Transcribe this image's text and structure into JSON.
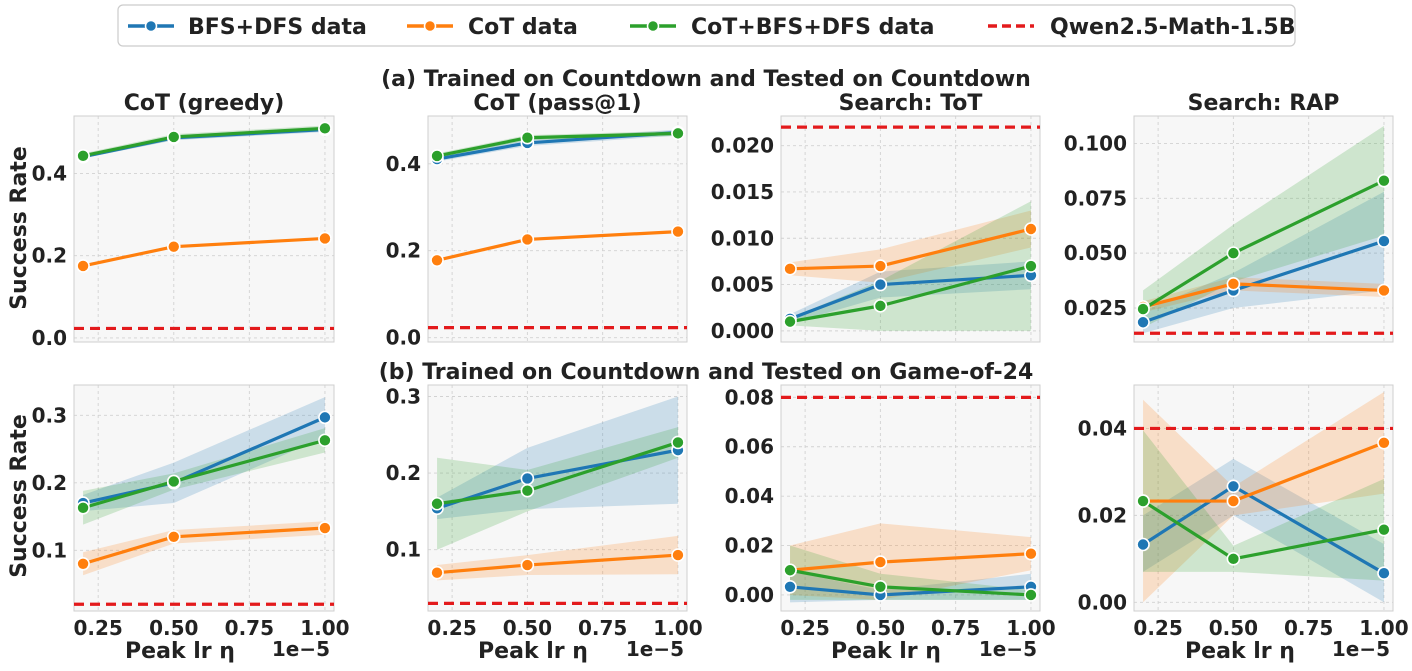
{
  "legend": {
    "items": [
      {
        "label": "BFS+DFS data",
        "color": "#1f77b4",
        "style": "solid-marker"
      },
      {
        "label": "CoT data",
        "color": "#ff7f0e",
        "style": "solid-marker"
      },
      {
        "label": "CoT+BFS+DFS data",
        "color": "#2ca02c",
        "style": "solid-marker"
      },
      {
        "label": "Qwen2.5-Math-1.5B",
        "color": "#e31a1c",
        "style": "dashed"
      }
    ]
  },
  "rows": [
    {
      "title": "(a) Trained on Countdown and Tested on Countdown"
    },
    {
      "title": "(b) Trained on Countdown and Tested on Game-of-24"
    }
  ],
  "axis_labels": {
    "ylabel": "Success Rate",
    "xlabel": "Peak lr η",
    "xscale_note": "1e−5"
  },
  "chart_data": [
    {
      "type": "line",
      "title": "CoT (greedy)",
      "xlabel": "",
      "ylabel": "Success Rate",
      "x": [
        0.2,
        0.5,
        1.0
      ],
      "xlim": [
        0.17,
        1.03
      ],
      "xticks": [
        "0.25",
        "0.50",
        "0.75",
        "1.00"
      ],
      "show_xticks": false,
      "ylim": [
        -0.01,
        0.54
      ],
      "yticks": [
        0.0,
        0.2,
        0.4
      ],
      "ytick_labels": [
        "0.0",
        "0.2",
        "0.4"
      ],
      "baseline": 0.023,
      "series": [
        {
          "name": "BFS+DFS data",
          "values": [
            0.441,
            0.487,
            0.507
          ],
          "lower": [
            0.437,
            0.481,
            0.501
          ],
          "upper": [
            0.445,
            0.493,
            0.513
          ]
        },
        {
          "name": "CoT data",
          "values": [
            0.175,
            0.222,
            0.242
          ],
          "lower": [
            0.172,
            0.219,
            0.239
          ],
          "upper": [
            0.178,
            0.225,
            0.245
          ]
        },
        {
          "name": "CoT+BFS+DFS data",
          "values": [
            0.443,
            0.489,
            0.51
          ],
          "lower": [
            0.437,
            0.482,
            0.503
          ],
          "upper": [
            0.449,
            0.496,
            0.517
          ]
        }
      ]
    },
    {
      "type": "line",
      "title": "CoT (pass@1)",
      "xlabel": "",
      "ylabel": "",
      "x": [
        0.2,
        0.5,
        1.0
      ],
      "xlim": [
        0.17,
        1.03
      ],
      "xticks": [
        "0.25",
        "0.50",
        "0.75",
        "1.00"
      ],
      "show_xticks": false,
      "ylim": [
        -0.01,
        0.51
      ],
      "yticks": [
        0.0,
        0.2,
        0.4
      ],
      "ytick_labels": [
        "0.0",
        "0.2",
        "0.4"
      ],
      "baseline": 0.023,
      "series": [
        {
          "name": "BFS+DFS data",
          "values": [
            0.411,
            0.448,
            0.472
          ],
          "lower": [
            0.405,
            0.441,
            0.465
          ],
          "upper": [
            0.417,
            0.455,
            0.479
          ]
        },
        {
          "name": "CoT data",
          "values": [
            0.178,
            0.226,
            0.244
          ],
          "lower": [
            0.175,
            0.223,
            0.241
          ],
          "upper": [
            0.181,
            0.229,
            0.247
          ]
        },
        {
          "name": "CoT+BFS+DFS data",
          "values": [
            0.418,
            0.46,
            0.47
          ],
          "lower": [
            0.412,
            0.454,
            0.464
          ],
          "upper": [
            0.424,
            0.466,
            0.476
          ]
        }
      ]
    },
    {
      "type": "line",
      "title": "Search: ToT",
      "xlabel": "",
      "ylabel": "",
      "x": [
        0.2,
        0.5,
        1.0
      ],
      "xlim": [
        0.17,
        1.03
      ],
      "xticks": [
        "0.25",
        "0.50",
        "0.75",
        "1.00"
      ],
      "show_xticks": false,
      "ylim": [
        -0.0012,
        0.0232
      ],
      "yticks": [
        0.0,
        0.005,
        0.01,
        0.015,
        0.02
      ],
      "ytick_labels": [
        "0.000",
        "0.005",
        "0.010",
        "0.015",
        "0.020"
      ],
      "baseline": 0.022,
      "series": [
        {
          "name": "BFS+DFS data",
          "values": [
            0.0013,
            0.005,
            0.006
          ],
          "lower": [
            0.0008,
            0.0036,
            0.0045
          ],
          "upper": [
            0.0018,
            0.0064,
            0.0075
          ]
        },
        {
          "name": "CoT data",
          "values": [
            0.0067,
            0.007,
            0.011
          ],
          "lower": [
            0.006,
            0.0052,
            0.009
          ],
          "upper": [
            0.0074,
            0.0088,
            0.013
          ]
        },
        {
          "name": "CoT+BFS+DFS data",
          "values": [
            0.001,
            0.0027,
            0.007
          ],
          "lower": [
            0.0006,
            0.0,
            0.0
          ],
          "upper": [
            0.0014,
            0.0054,
            0.014
          ]
        }
      ]
    },
    {
      "type": "line",
      "title": "Search: RAP",
      "xlabel": "",
      "ylabel": "",
      "x": [
        0.2,
        0.5,
        1.0
      ],
      "xlim": [
        0.17,
        1.03
      ],
      "xticks": [
        "0.25",
        "0.50",
        "0.75",
        "1.00"
      ],
      "show_xticks": false,
      "ylim": [
        0.0095,
        0.1125
      ],
      "yticks": [
        0.025,
        0.05,
        0.075,
        0.1
      ],
      "ytick_labels": [
        "0.025",
        "0.050",
        "0.075",
        "0.100"
      ],
      "baseline": 0.0135,
      "series": [
        {
          "name": "BFS+DFS data",
          "values": [
            0.0185,
            0.033,
            0.0555
          ],
          "lower": [
            0.0135,
            0.025,
            0.033
          ],
          "upper": [
            0.0235,
            0.041,
            0.078
          ]
        },
        {
          "name": "CoT data",
          "values": [
            0.0255,
            0.036,
            0.033
          ],
          "lower": [
            0.023,
            0.033,
            0.03
          ],
          "upper": [
            0.028,
            0.039,
            0.036
          ]
        },
        {
          "name": "CoT+BFS+DFS data",
          "values": [
            0.0245,
            0.05,
            0.083
          ],
          "lower": [
            0.016,
            0.037,
            0.058
          ],
          "upper": [
            0.033,
            0.063,
            0.108
          ]
        }
      ]
    },
    {
      "type": "line",
      "title": "",
      "xlabel": "Peak lr η",
      "ylabel": "Success Rate",
      "x": [
        0.2,
        0.5,
        1.0
      ],
      "xlim": [
        0.17,
        1.03
      ],
      "xticks": [
        "0.25",
        "0.50",
        "0.75",
        "1.00"
      ],
      "show_xticks": true,
      "ylim": [
        0.01,
        0.345
      ],
      "yticks": [
        0.1,
        0.2,
        0.3
      ],
      "ytick_labels": [
        "0.1",
        "0.2",
        "0.3"
      ],
      "baseline": 0.02,
      "series": [
        {
          "name": "BFS+DFS data",
          "values": [
            0.17,
            0.2,
            0.297
          ],
          "lower": [
            0.158,
            0.17,
            0.268
          ],
          "upper": [
            0.182,
            0.23,
            0.327
          ]
        },
        {
          "name": "CoT data",
          "values": [
            0.08,
            0.12,
            0.133
          ],
          "lower": [
            0.063,
            0.11,
            0.123
          ],
          "upper": [
            0.097,
            0.13,
            0.143
          ]
        },
        {
          "name": "CoT+BFS+DFS data",
          "values": [
            0.163,
            0.202,
            0.263
          ],
          "lower": [
            0.138,
            0.19,
            0.245
          ],
          "upper": [
            0.188,
            0.214,
            0.281
          ]
        }
      ]
    },
    {
      "type": "line",
      "title": "",
      "xlabel": "Peak lr η",
      "ylabel": "",
      "x": [
        0.2,
        0.5,
        1.0
      ],
      "xlim": [
        0.17,
        1.03
      ],
      "xticks": [
        "0.25",
        "0.50",
        "0.75",
        "1.00"
      ],
      "show_xticks": true,
      "ylim": [
        0.02,
        0.315
      ],
      "yticks": [
        0.1,
        0.2,
        0.3
      ],
      "ytick_labels": [
        "0.1",
        "0.2",
        "0.3"
      ],
      "baseline": 0.03,
      "series": [
        {
          "name": "BFS+DFS data",
          "values": [
            0.154,
            0.193,
            0.23
          ],
          "lower": [
            0.14,
            0.153,
            0.16
          ],
          "upper": [
            0.168,
            0.233,
            0.3
          ]
        },
        {
          "name": "CoT data",
          "values": [
            0.07,
            0.08,
            0.093
          ],
          "lower": [
            0.06,
            0.067,
            0.068
          ],
          "upper": [
            0.08,
            0.093,
            0.118
          ]
        },
        {
          "name": "CoT+BFS+DFS data",
          "values": [
            0.16,
            0.177,
            0.24
          ],
          "lower": [
            0.1,
            0.15,
            0.22
          ],
          "upper": [
            0.22,
            0.204,
            0.26
          ]
        }
      ]
    },
    {
      "type": "line",
      "title": "",
      "xlabel": "Peak lr η",
      "ylabel": "",
      "x": [
        0.2,
        0.5,
        1.0
      ],
      "xlim": [
        0.17,
        1.03
      ],
      "xticks": [
        "0.25",
        "0.50",
        "0.75",
        "1.00"
      ],
      "show_xticks": true,
      "ylim": [
        -0.0065,
        0.085
      ],
      "yticks": [
        0.0,
        0.02,
        0.04,
        0.06,
        0.08
      ],
      "ytick_labels": [
        "0.00",
        "0.02",
        "0.04",
        "0.06",
        "0.08"
      ],
      "baseline": 0.08,
      "series": [
        {
          "name": "BFS+DFS data",
          "values": [
            0.0033,
            0.0,
            0.0033
          ],
          "lower": [
            -0.003,
            -0.002,
            -0.002
          ],
          "upper": [
            0.0096,
            0.002,
            0.0086
          ]
        },
        {
          "name": "CoT data",
          "values": [
            0.01,
            0.0133,
            0.0167
          ],
          "lower": [
            0.0,
            -0.002,
            0.01
          ],
          "upper": [
            0.02,
            0.029,
            0.0234
          ]
        },
        {
          "name": "CoT+BFS+DFS data",
          "values": [
            0.01,
            0.0033,
            0.0
          ],
          "lower": [
            -0.002,
            -0.002,
            -0.002
          ],
          "upper": [
            0.02,
            0.0086,
            0.002
          ]
        }
      ]
    },
    {
      "type": "line",
      "title": "",
      "xlabel": "Peak lr η",
      "ylabel": "",
      "x": [
        0.2,
        0.5,
        1.0
      ],
      "xlim": [
        0.17,
        1.03
      ],
      "xticks": [
        "0.25",
        "0.50",
        "0.75",
        "1.00"
      ],
      "show_xticks": true,
      "ylim": [
        -0.002,
        0.05
      ],
      "yticks": [
        0.0,
        0.02,
        0.04
      ],
      "ytick_labels": [
        "0.00",
        "0.02",
        "0.04"
      ],
      "baseline": 0.04,
      "series": [
        {
          "name": "BFS+DFS data",
          "values": [
            0.0133,
            0.0267,
            0.0067
          ],
          "lower": [
            0.007,
            0.02,
            0.0
          ],
          "upper": [
            0.02,
            0.033,
            0.0134
          ]
        },
        {
          "name": "CoT data",
          "values": [
            0.0233,
            0.0233,
            0.0367
          ],
          "lower": [
            0.0,
            0.02,
            0.025
          ],
          "upper": [
            0.0466,
            0.0266,
            0.0484
          ]
        },
        {
          "name": "CoT+BFS+DFS data",
          "values": [
            0.0233,
            0.01,
            0.0167
          ],
          "lower": [
            0.007,
            0.007,
            0.005
          ],
          "upper": [
            0.0396,
            0.013,
            0.0284
          ]
        }
      ]
    }
  ]
}
